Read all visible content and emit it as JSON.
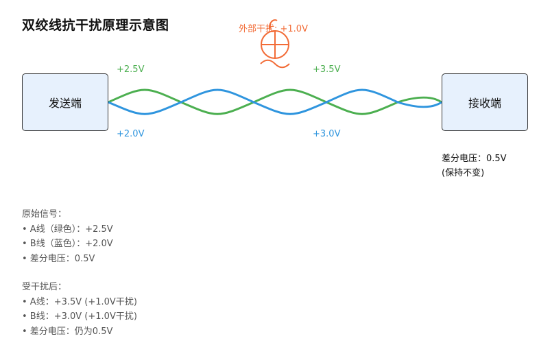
{
  "title": "双绞线抗干扰原理示意图",
  "sender": "发送端",
  "receiver": "接收端",
  "labels": {
    "a_before": "+2.5V",
    "b_before": "+2.0V",
    "a_after": "+3.5V",
    "b_after": "+3.0V",
    "interference": "外部干扰: +1.0V"
  },
  "receiver_note": {
    "line1": "差分电压：0.5V",
    "line2": "(保持不变)"
  },
  "original": {
    "heading": "原始信号：",
    "items": [
      "• A线（绿色）：+2.5V",
      "• B线（蓝色）：+2.0V",
      "• 差分电压：0.5V"
    ]
  },
  "after": {
    "heading": "受干扰后：",
    "items": [
      "• A线：+3.5V (+1.0V干扰)",
      "• B线：+3.0V (+1.0V干扰)",
      "• 差分电压：仍为0.5V"
    ]
  },
  "colors": {
    "wire_a": "#4caf50",
    "wire_b": "#2f95de",
    "interference": "#f26b36",
    "node_fill": "#e7f1fd"
  }
}
